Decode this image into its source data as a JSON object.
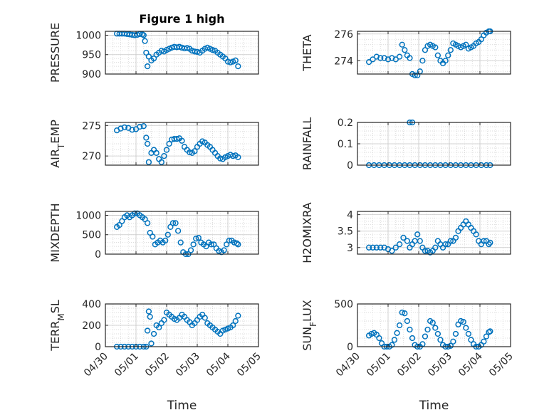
{
  "colors": {
    "marker": "#0072bd",
    "grid": "#d0d0d0",
    "axis": "#262626"
  },
  "chart_data": [
    {
      "type": "scatter",
      "title": "Figure 1 high",
      "ylabel": "PRESSURE",
      "xlim": [
        "04/30",
        "05/05"
      ],
      "ylim": [
        900,
        1010
      ],
      "yticks": [
        900,
        950,
        1000
      ],
      "x": [
        "04/30 09:00",
        "04/30 11:00",
        "04/30 13:00",
        "04/30 15:00",
        "04/30 17:00",
        "04/30 19:00",
        "04/30 21:00",
        "04/30 23:00",
        "05/01 01:00",
        "05/01 03:00",
        "05/01 05:00",
        "05/01 06:00",
        "05/01 07:00",
        "05/01 08:00",
        "05/01 09:00",
        "05/01 10:00",
        "05/01 12:00",
        "05/01 14:00",
        "05/01 16:00",
        "05/01 18:00",
        "05/01 20:00",
        "05/01 22:00",
        "05/02 00:00",
        "05/02 02:00",
        "05/02 04:00",
        "05/02 06:00",
        "05/02 08:00",
        "05/02 10:00",
        "05/02 12:00",
        "05/02 14:00",
        "05/02 16:00",
        "05/02 18:00",
        "05/02 20:00",
        "05/02 22:00",
        "05/03 00:00",
        "05/03 02:00",
        "05/03 04:00",
        "05/03 06:00",
        "05/03 08:00",
        "05/03 10:00",
        "05/03 12:00",
        "05/03 14:00",
        "05/03 16:00",
        "05/03 18:00",
        "05/03 20:00",
        "05/03 22:00",
        "05/04 00:00",
        "05/04 02:00",
        "05/04 04:00",
        "05/04 06:00",
        "05/04 08:00"
      ],
      "y": [
        1004,
        1004,
        1004,
        1004,
        1003,
        1002,
        1001,
        1000,
        1001,
        1003,
        1002,
        1000,
        985,
        955,
        920,
        945,
        935,
        940,
        950,
        955,
        960,
        958,
        962,
        965,
        968,
        970,
        969,
        970,
        968,
        966,
        967,
        965,
        960,
        958,
        957,
        955,
        960,
        965,
        968,
        965,
        962,
        960,
        955,
        950,
        945,
        940,
        932,
        930,
        932,
        935,
        920
      ]
    },
    {
      "type": "scatter",
      "ylabel": "THETA",
      "xlim": [
        "04/30",
        "05/05"
      ],
      "ylim": [
        273,
        276.2
      ],
      "yticks": [
        274,
        276
      ],
      "x": [
        "04/30 09:00",
        "04/30 12:00",
        "04/30 15:00",
        "04/30 18:00",
        "04/30 21:00",
        "05/01 00:00",
        "05/01 03:00",
        "05/01 06:00",
        "05/01 09:00",
        "05/01 11:00",
        "05/01 13:00",
        "05/01 15:00",
        "05/01 17:00",
        "05/01 19:00",
        "05/01 21:00",
        "05/01 23:00",
        "05/02 01:00",
        "05/02 03:00",
        "05/02 05:00",
        "05/02 07:00",
        "05/02 09:00",
        "05/02 11:00",
        "05/02 13:00",
        "05/02 15:00",
        "05/02 17:00",
        "05/02 19:00",
        "05/02 21:00",
        "05/02 23:00",
        "05/03 01:00",
        "05/03 03:00",
        "05/03 05:00",
        "05/03 07:00",
        "05/03 09:00",
        "05/03 11:00",
        "05/03 13:00",
        "05/03 15:00",
        "05/03 17:00",
        "05/03 19:00",
        "05/03 21:00",
        "05/03 23:00",
        "05/04 01:00",
        "05/04 03:00",
        "05/04 05:00",
        "05/04 07:00",
        "05/04 08:00"
      ],
      "y": [
        273.9,
        274.1,
        274.3,
        274.2,
        274.2,
        274.1,
        274.2,
        274.1,
        274.3,
        275.2,
        274.8,
        274.4,
        274.2,
        273.0,
        272.9,
        272.9,
        273.2,
        274.0,
        274.8,
        275.1,
        275.2,
        275.1,
        275.0,
        274.4,
        274.0,
        273.8,
        274.0,
        274.4,
        274.8,
        275.3,
        275.2,
        275.1,
        275.0,
        275.1,
        275.2,
        274.9,
        275.0,
        275.1,
        275.3,
        275.4,
        275.6,
        275.9,
        276.1,
        276.2,
        276.2
      ]
    },
    {
      "type": "scatter",
      "ylabel": "AIR_TEMP",
      "xlim": [
        "04/30",
        "05/05"
      ],
      "ylim": [
        268.5,
        275.5
      ],
      "yticks": [
        270,
        275
      ],
      "x": [
        "04/30 09:00",
        "04/30 12:00",
        "04/30 15:00",
        "04/30 18:00",
        "04/30 21:00",
        "05/01 00:00",
        "05/01 03:00",
        "05/01 06:00",
        "05/01 08:00",
        "05/01 09:00",
        "05/01 10:00",
        "05/01 12:00",
        "05/01 14:00",
        "05/01 16:00",
        "05/01 18:00",
        "05/01 20:00",
        "05/01 22:00",
        "05/02 00:00",
        "05/02 02:00",
        "05/02 04:00",
        "05/02 06:00",
        "05/02 08:00",
        "05/02 10:00",
        "05/02 12:00",
        "05/02 14:00",
        "05/02 16:00",
        "05/02 18:00",
        "05/02 20:00",
        "05/02 22:00",
        "05/03 00:00",
        "05/03 02:00",
        "05/03 04:00",
        "05/03 06:00",
        "05/03 08:00",
        "05/03 10:00",
        "05/03 12:00",
        "05/03 14:00",
        "05/03 16:00",
        "05/03 18:00",
        "05/03 20:00",
        "05/03 22:00",
        "05/04 00:00",
        "05/04 02:00",
        "05/04 04:00",
        "05/04 06:00",
        "05/04 08:00"
      ],
      "y": [
        274.2,
        274.5,
        274.7,
        274.6,
        274.3,
        274.4,
        274.8,
        274.9,
        273.0,
        272.0,
        269.0,
        270.5,
        271.0,
        270.5,
        269.5,
        269.0,
        270.0,
        271.0,
        272.0,
        272.7,
        272.8,
        272.8,
        272.9,
        272.5,
        271.5,
        271.0,
        270.6,
        270.5,
        270.8,
        271.5,
        272.0,
        272.4,
        272.2,
        271.8,
        271.5,
        271.0,
        270.5,
        270.0,
        269.6,
        269.5,
        269.8,
        270.0,
        270.2,
        270.0,
        270.1,
        269.8
      ]
    },
    {
      "type": "scatter",
      "ylabel": "RAINFALL",
      "xlim": [
        "04/30",
        "05/05"
      ],
      "ylim": [
        0,
        0.2
      ],
      "yticks": [
        0,
        0.1,
        0.2
      ],
      "x": [
        "04/30 09:00",
        "04/30 13:00",
        "04/30 17:00",
        "04/30 21:00",
        "05/01 01:00",
        "05/01 05:00",
        "05/01 09:00",
        "05/01 13:00",
        "05/01 17:00",
        "05/01 21:00",
        "05/02 01:00",
        "05/02 05:00",
        "05/02 09:00",
        "05/02 13:00",
        "05/02 17:00",
        "05/02 21:00",
        "05/03 01:00",
        "05/03 05:00",
        "05/03 09:00",
        "05/03 13:00",
        "05/03 17:00",
        "05/03 21:00",
        "05/04 01:00",
        "05/04 05:00",
        "05/04 08:00",
        "05/01 17:00",
        "05/01 19:00"
      ],
      "y": [
        0,
        0,
        0,
        0,
        0,
        0,
        0,
        0,
        0,
        0,
        0,
        0,
        0,
        0,
        0,
        0,
        0,
        0,
        0,
        0,
        0,
        0,
        0,
        0,
        0,
        0.2,
        0.2
      ]
    },
    {
      "type": "scatter",
      "ylabel": "MIXDEPTH",
      "xlim": [
        "04/30",
        "05/05"
      ],
      "ylim": [
        0,
        1100
      ],
      "yticks": [
        0,
        500,
        1000
      ],
      "x": [
        "04/30 09:00",
        "04/30 11:00",
        "04/30 13:00",
        "04/30 15:00",
        "04/30 17:00",
        "04/30 19:00",
        "04/30 21:00",
        "04/30 23:00",
        "05/01 01:00",
        "05/01 03:00",
        "05/01 05:00",
        "05/01 07:00",
        "05/01 09:00",
        "05/01 11:00",
        "05/01 13:00",
        "05/01 15:00",
        "05/01 17:00",
        "05/01 19:00",
        "05/01 21:00",
        "05/01 23:00",
        "05/02 01:00",
        "05/02 03:00",
        "05/02 05:00",
        "05/02 07:00",
        "05/02 09:00",
        "05/02 11:00",
        "05/02 13:00",
        "05/02 15:00",
        "05/02 17:00",
        "05/02 19:00",
        "05/02 21:00",
        "05/02 23:00",
        "05/03 01:00",
        "05/03 03:00",
        "05/03 05:00",
        "05/03 07:00",
        "05/03 09:00",
        "05/03 11:00",
        "05/03 13:00",
        "05/03 15:00",
        "05/03 17:00",
        "05/03 19:00",
        "05/03 21:00",
        "05/03 23:00",
        "05/04 01:00",
        "05/04 03:00",
        "05/04 05:00",
        "05/04 07:00",
        "05/04 08:00"
      ],
      "y": [
        700,
        750,
        850,
        950,
        1000,
        950,
        1000,
        1050,
        1050,
        1000,
        950,
        900,
        800,
        550,
        450,
        250,
        300,
        350,
        300,
        350,
        500,
        700,
        800,
        800,
        600,
        300,
        50,
        0,
        0,
        100,
        250,
        400,
        420,
        300,
        250,
        200,
        300,
        250,
        250,
        150,
        80,
        50,
        100,
        250,
        350,
        350,
        300,
        280,
        250
      ]
    },
    {
      "type": "scatter",
      "ylabel": "H2OMIXRA",
      "xlim": [
        "04/30",
        "05/05"
      ],
      "ylim": [
        2.8,
        4.1
      ],
      "yticks": [
        3,
        3.5,
        4
      ],
      "x": [
        "04/30 09:00",
        "04/30 12:00",
        "04/30 15:00",
        "04/30 18:00",
        "04/30 21:00",
        "05/01 00:00",
        "05/01 03:00",
        "05/01 06:00",
        "05/01 09:00",
        "05/01 12:00",
        "05/01 15:00",
        "05/01 17:00",
        "05/01 19:00",
        "05/01 21:00",
        "05/01 23:00",
        "05/02 01:00",
        "05/02 03:00",
        "05/02 05:00",
        "05/02 07:00",
        "05/02 09:00",
        "05/02 11:00",
        "05/02 13:00",
        "05/02 15:00",
        "05/02 17:00",
        "05/02 19:00",
        "05/02 21:00",
        "05/02 23:00",
        "05/03 01:00",
        "05/03 03:00",
        "05/03 05:00",
        "05/03 07:00",
        "05/03 09:00",
        "05/03 11:00",
        "05/03 13:00",
        "05/03 15:00",
        "05/03 17:00",
        "05/03 19:00",
        "05/03 21:00",
        "05/03 23:00",
        "05/04 01:00",
        "05/04 03:00",
        "05/04 05:00",
        "05/04 07:00",
        "05/04 08:00"
      ],
      "y": [
        3.0,
        3.0,
        3.0,
        3.0,
        3.0,
        2.95,
        2.9,
        3.0,
        3.1,
        3.3,
        3.2,
        3.0,
        3.1,
        3.2,
        3.4,
        3.2,
        3.0,
        2.9,
        2.9,
        2.85,
        2.9,
        3.0,
        3.2,
        3.1,
        3.0,
        3.1,
        3.1,
        3.2,
        3.2,
        3.3,
        3.5,
        3.6,
        3.7,
        3.8,
        3.7,
        3.6,
        3.5,
        3.4,
        3.2,
        3.1,
        3.2,
        3.2,
        3.1,
        3.15
      ]
    },
    {
      "type": "scatter",
      "ylabel": "TERR_MSL",
      "xlim": [
        "04/30",
        "05/05"
      ],
      "ylim": [
        0,
        400
      ],
      "yticks": [
        0,
        200,
        400
      ],
      "xlabel": "Time",
      "xticks": [
        "04/30",
        "05/01",
        "05/02",
        "05/03",
        "05/04",
        "05/05"
      ],
      "x": [
        "04/30 09:00",
        "04/30 12:00",
        "04/30 15:00",
        "04/30 18:00",
        "04/30 21:00",
        "05/01 00:00",
        "05/01 03:00",
        "05/01 06:00",
        "05/01 08:00",
        "05/01 09:00",
        "05/01 10:00",
        "05/01 11:00",
        "05/01 12:00",
        "05/01 14:00",
        "05/01 16:00",
        "05/01 18:00",
        "05/01 20:00",
        "05/01 22:00",
        "05/02 00:00",
        "05/02 02:00",
        "05/02 04:00",
        "05/02 06:00",
        "05/02 08:00",
        "05/02 10:00",
        "05/02 12:00",
        "05/02 14:00",
        "05/02 16:00",
        "05/02 18:00",
        "05/02 20:00",
        "05/02 22:00",
        "05/03 00:00",
        "05/03 02:00",
        "05/03 04:00",
        "05/03 06:00",
        "05/03 08:00",
        "05/03 10:00",
        "05/03 12:00",
        "05/03 14:00",
        "05/03 16:00",
        "05/03 18:00",
        "05/03 20:00",
        "05/03 22:00",
        "05/04 00:00",
        "05/04 02:00",
        "05/04 04:00",
        "05/04 06:00",
        "05/04 08:00"
      ],
      "y": [
        0,
        0,
        0,
        0,
        0,
        0,
        0,
        0,
        0,
        150,
        330,
        280,
        30,
        120,
        200,
        180,
        220,
        250,
        320,
        300,
        280,
        260,
        250,
        270,
        300,
        280,
        250,
        230,
        200,
        220,
        250,
        280,
        300,
        270,
        220,
        200,
        180,
        160,
        140,
        120,
        150,
        160,
        170,
        180,
        200,
        240,
        290
      ]
    },
    {
      "type": "scatter",
      "ylabel": "SUN_FLUX",
      "xlim": [
        "04/30",
        "05/05"
      ],
      "ylim": [
        0,
        500
      ],
      "yticks": [
        0,
        500
      ],
      "xlabel": "Time",
      "xticks": [
        "04/30",
        "05/01",
        "05/02",
        "05/03",
        "05/04",
        "05/05"
      ],
      "x": [
        "04/30 09:00",
        "04/30 11:00",
        "04/30 13:00",
        "04/30 15:00",
        "04/30 17:00",
        "04/30 19:00",
        "04/30 21:00",
        "04/30 23:00",
        "05/01 01:00",
        "05/01 03:00",
        "05/01 05:00",
        "05/01 07:00",
        "05/01 09:00",
        "05/01 11:00",
        "05/01 13:00",
        "05/01 15:00",
        "05/01 17:00",
        "05/01 19:00",
        "05/01 21:00",
        "05/01 23:00",
        "05/02 01:00",
        "05/02 03:00",
        "05/02 05:00",
        "05/02 07:00",
        "05/02 09:00",
        "05/02 11:00",
        "05/02 13:00",
        "05/02 15:00",
        "05/02 17:00",
        "05/02 19:00",
        "05/02 21:00",
        "05/02 23:00",
        "05/03 01:00",
        "05/03 03:00",
        "05/03 05:00",
        "05/03 07:00",
        "05/03 09:00",
        "05/03 11:00",
        "05/03 13:00",
        "05/03 15:00",
        "05/03 17:00",
        "05/03 19:00",
        "05/03 21:00",
        "05/03 23:00",
        "05/04 01:00",
        "05/04 03:00",
        "05/04 05:00",
        "05/04 07:00",
        "05/04 08:00"
      ],
      "y": [
        130,
        150,
        160,
        140,
        100,
        40,
        0,
        0,
        0,
        20,
        80,
        160,
        250,
        400,
        390,
        300,
        200,
        100,
        20,
        0,
        0,
        30,
        120,
        200,
        300,
        280,
        220,
        150,
        80,
        20,
        0,
        0,
        10,
        60,
        150,
        260,
        300,
        290,
        220,
        150,
        80,
        30,
        0,
        0,
        20,
        60,
        120,
        170,
        180
      ]
    }
  ]
}
